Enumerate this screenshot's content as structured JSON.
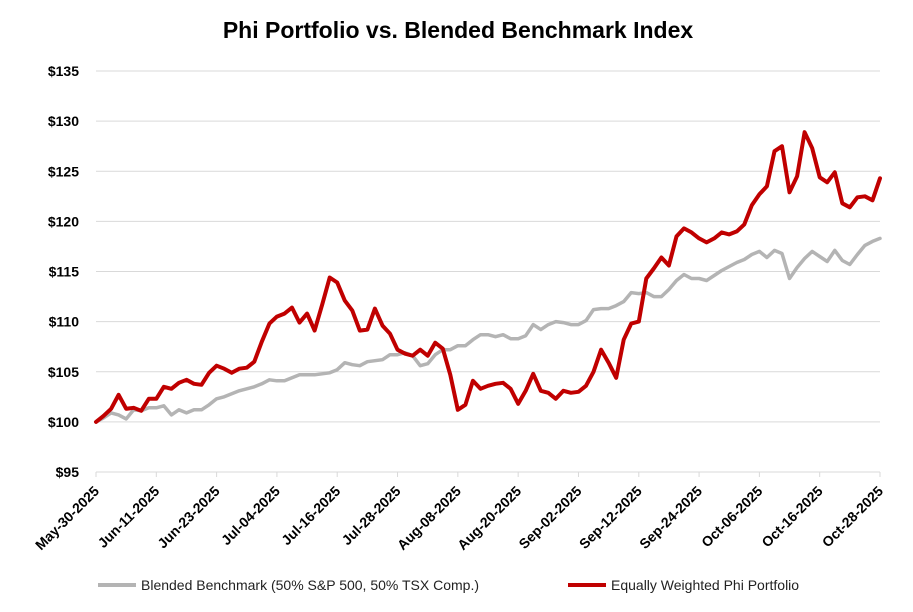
{
  "chart_data": {
    "type": "line",
    "title": "Phi Portfolio vs. Blended Benchmark Index",
    "xlabel": "",
    "ylabel": "",
    "ylim": [
      95,
      135
    ],
    "yticks": [
      95,
      100,
      105,
      110,
      115,
      120,
      125,
      130,
      135
    ],
    "ytick_labels": [
      "$95",
      "$100",
      "$105",
      "$110",
      "$115",
      "$120",
      "$125",
      "$130",
      "$135"
    ],
    "x_tick_labels": [
      "May-30-2025",
      "Jun-11-2025",
      "Jun-23-2025",
      "Jul-04-2025",
      "Jul-16-2025",
      "Jul-28-2025",
      "Aug-08-2025",
      "Aug-20-2025",
      "Sep-02-2025",
      "Sep-12-2025",
      "Sep-24-2025",
      "Oct-06-2025",
      "Oct-16-2025",
      "Oct-28-2025"
    ],
    "grid": true,
    "legend": "bottom",
    "series": [
      {
        "name": "Blended Benchmark (50% S&P 500, 50% TSX Comp.)",
        "color": "#b4b4b4",
        "values": [
          100.0,
          100.4,
          100.9,
          100.7,
          100.3,
          101.2,
          101.1,
          101.4,
          101.4,
          101.6,
          100.7,
          101.2,
          100.9,
          101.2,
          101.2,
          101.7,
          102.3,
          102.5,
          102.8,
          103.1,
          103.3,
          103.5,
          103.8,
          104.2,
          104.1,
          104.1,
          104.4,
          104.7,
          104.7,
          104.7,
          104.8,
          104.9,
          105.2,
          105.9,
          105.7,
          105.6,
          106.0,
          106.1,
          106.2,
          106.7,
          106.7,
          106.9,
          106.6,
          105.6,
          105.8,
          106.7,
          107.2,
          107.2,
          107.6,
          107.6,
          108.2,
          108.7,
          108.7,
          108.5,
          108.7,
          108.3,
          108.3,
          108.6,
          109.7,
          109.2,
          109.7,
          110.0,
          109.9,
          109.7,
          109.7,
          110.1,
          111.2,
          111.3,
          111.3,
          111.6,
          112.0,
          112.9,
          112.8,
          112.9,
          112.5,
          112.5,
          113.2,
          114.1,
          114.7,
          114.3,
          114.3,
          114.1,
          114.6,
          115.1,
          115.5,
          115.9,
          116.2,
          116.7,
          117.0,
          116.4,
          117.1,
          116.8,
          114.3,
          115.4,
          116.3,
          117.0,
          116.5,
          116.0,
          117.1,
          116.1,
          115.7,
          116.7,
          117.6,
          118.0,
          118.3
        ]
      },
      {
        "name": "Equally Weighted Phi Portfolio",
        "color": "#c00000",
        "values": [
          100.0,
          100.6,
          101.3,
          102.7,
          101.3,
          101.4,
          101.1,
          102.3,
          102.3,
          103.5,
          103.3,
          103.9,
          104.2,
          103.8,
          103.7,
          104.9,
          105.6,
          105.3,
          104.9,
          105.3,
          105.4,
          106.0,
          108.0,
          109.8,
          110.5,
          110.8,
          111.4,
          109.9,
          110.8,
          109.1,
          111.7,
          114.4,
          113.9,
          112.1,
          111.1,
          109.1,
          109.2,
          111.3,
          109.6,
          108.8,
          107.2,
          106.8,
          106.6,
          107.2,
          106.6,
          107.9,
          107.3,
          104.7,
          101.2,
          101.7,
          104.1,
          103.3,
          103.6,
          103.8,
          103.9,
          103.3,
          101.8,
          103.1,
          104.8,
          103.1,
          102.9,
          102.3,
          103.1,
          102.9,
          103.0,
          103.6,
          105.0,
          107.2,
          105.9,
          104.4,
          108.2,
          109.8,
          110.0,
          114.3,
          115.3,
          116.4,
          115.6,
          118.5,
          119.3,
          118.9,
          118.3,
          117.9,
          118.3,
          118.9,
          118.7,
          119.0,
          119.7,
          121.6,
          122.7,
          123.5,
          127.0,
          127.5,
          122.9,
          124.5,
          128.9,
          127.3,
          124.4,
          123.9,
          124.9,
          121.8,
          121.4,
          122.4,
          122.5,
          122.1,
          124.3
        ]
      }
    ]
  }
}
